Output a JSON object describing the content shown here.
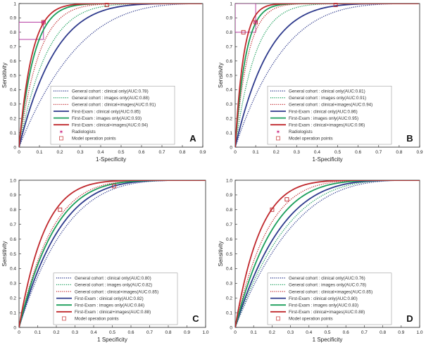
{
  "chart_data": [
    {
      "panel": "A",
      "type": "line",
      "xlabel": "1-Specificity",
      "ylabel": "Sensitivity",
      "xlim": [
        0,
        0.9
      ],
      "ylim": [
        0,
        1.0
      ],
      "xticks": [
        "0",
        "0.1",
        "0.2",
        "0.3",
        "0.4",
        "0.5",
        "0.6",
        "0.7",
        "0.8",
        "0.9"
      ],
      "yticks": [
        "0",
        "0.1",
        "0.2",
        "0.3",
        "0.4",
        "0.5",
        "0.6",
        "0.7",
        "0.8",
        "0.9",
        "1"
      ],
      "legend_position": "bottom-right",
      "series": [
        {
          "name": "General cohort   : clinical only(AUC:0.78)",
          "color": "#2e3a8c",
          "dash": "dot",
          "auc": 0.78
        },
        {
          "name": "General cohort   : images only(AUC:0.88)",
          "color": "#1a9e5a",
          "dash": "dot",
          "auc": 0.88
        },
        {
          "name": "General cohort   : clinical+images(AUC:0.91)",
          "color": "#c0282d",
          "dash": "dot",
          "auc": 0.91
        },
        {
          "name": "First-Exam       : clinical only(AUC:0.85)",
          "color": "#2e3a8c",
          "dash": "solid",
          "auc": 0.85
        },
        {
          "name": "First-Exam       : images only(AUC:0.93)",
          "color": "#1a9e5a",
          "dash": "solid",
          "auc": 0.93
        },
        {
          "name": "First-Exam       : clinical+images(AUC:0.94)",
          "color": "#c0282d",
          "dash": "solid",
          "auc": 0.94
        }
      ],
      "marker_legend": [
        {
          "name": "Radiologists",
          "symbol": "star",
          "color": "#c81e7a"
        },
        {
          "name": "Model operation points",
          "symbol": "square",
          "color": "#d36060"
        }
      ],
      "radiologist_points": [
        [
          0.12,
          0.87
        ]
      ],
      "model_points": [
        [
          0.12,
          0.87
        ],
        [
          0.43,
          0.99
        ]
      ],
      "ref_box": {
        "x0": 0,
        "x1": 0.12,
        "y0": 0.75,
        "y1": 0.87,
        "color": "#b02b9a"
      },
      "panel_label": "A"
    },
    {
      "panel": "B",
      "type": "line",
      "xlabel": "1-Specificity",
      "ylabel": "Sensitivity",
      "xlim": [
        0,
        0.9
      ],
      "ylim": [
        0,
        1.0
      ],
      "xticks": [
        "0",
        "0.1",
        "0.2",
        "0.3",
        "0.4",
        "0.5",
        "0.6",
        "0.7",
        "0.8",
        "0.9"
      ],
      "yticks": [
        "0",
        "0.1",
        "0.2",
        "0.3",
        "0.4",
        "0.5",
        "0.6",
        "0.7",
        "0.8",
        "0.9",
        "1"
      ],
      "legend_position": "bottom-right",
      "series": [
        {
          "name": "General cohort   : clinical only(AUC:0.81)",
          "color": "#2e3a8c",
          "dash": "dot",
          "auc": 0.81
        },
        {
          "name": "General cohort   : images only(AUC:0.91)",
          "color": "#1a9e5a",
          "dash": "dot",
          "auc": 0.91
        },
        {
          "name": "General cohort   : clinical+images(AUC:0.94)",
          "color": "#c0282d",
          "dash": "dot",
          "auc": 0.94
        },
        {
          "name": "First-Exam       : clinical only(AUC:0.86)",
          "color": "#2e3a8c",
          "dash": "solid",
          "auc": 0.86
        },
        {
          "name": "First-Exam       : images only(AUC:0.95)",
          "color": "#1a9e5a",
          "dash": "solid",
          "auc": 0.95
        },
        {
          "name": "First-Exam       : clinical+images(AUC:0.96)",
          "color": "#c0282d",
          "dash": "solid",
          "auc": 0.96
        }
      ],
      "marker_legend": [
        {
          "name": "Radiologists",
          "symbol": "star",
          "color": "#c81e7a"
        },
        {
          "name": "Model operation points",
          "symbol": "square",
          "color": "#d36060"
        }
      ],
      "radiologist_points": [
        [
          0.1,
          0.87
        ]
      ],
      "model_points": [
        [
          0.04,
          0.8
        ],
        [
          0.1,
          0.87
        ],
        [
          0.49,
          0.99
        ]
      ],
      "ref_box": {
        "x0": 0,
        "x1": 0.1,
        "y0": 0.8,
        "y1": 1.0,
        "color": "#b02b9a"
      },
      "panel_label": "B"
    },
    {
      "panel": "C",
      "type": "line",
      "xlabel": "1 Specificity",
      "ylabel": "Sensitivity",
      "xlim": [
        0,
        1.0
      ],
      "ylim": [
        0,
        1.0
      ],
      "xticks": [
        "0",
        "0.1",
        "0.2",
        "0.3",
        "0.4",
        "0.5",
        "0.6",
        "0.7",
        "0.8",
        "0.9",
        "1.0"
      ],
      "yticks": [
        "0",
        "0.1",
        "0.2",
        "0.3",
        "0.4",
        "0.5",
        "0.6",
        "0.7",
        "0.8",
        "0.9",
        "1.0"
      ],
      "legend_position": "bottom-right",
      "series": [
        {
          "name": "General cohort  : clinical only(AUC:0.80)",
          "color": "#2e3a8c",
          "dash": "dot",
          "auc": 0.8
        },
        {
          "name": "General cohort  : images only(AUC:0.82)",
          "color": "#1a9e5a",
          "dash": "dot",
          "auc": 0.82
        },
        {
          "name": "General cohort  : clinical+images(AUC:0.85)",
          "color": "#c0282d",
          "dash": "dot",
          "auc": 0.85
        },
        {
          "name": "First-Exam      : clinical only(AUC:0.82)",
          "color": "#2e3a8c",
          "dash": "solid",
          "auc": 0.82
        },
        {
          "name": "First-Exam      : images only(AUC:0.84)",
          "color": "#1a9e5a",
          "dash": "solid",
          "auc": 0.84
        },
        {
          "name": "First-Exam      : clinical+images(AUC:0.88)",
          "color": "#c0282d",
          "dash": "solid",
          "auc": 0.88
        }
      ],
      "marker_legend": [
        {
          "name": "Model operation points",
          "symbol": "square",
          "color": "#d36060"
        }
      ],
      "radiologist_points": [],
      "model_points": [
        [
          0.22,
          0.8
        ],
        [
          0.51,
          0.96
        ]
      ],
      "panel_label": "C"
    },
    {
      "panel": "D",
      "type": "line",
      "xlabel": "1 Specificity",
      "ylabel": "Sensitivity",
      "xlim": [
        0,
        1.0
      ],
      "ylim": [
        0,
        1.0
      ],
      "xticks": [
        "0",
        "0.1",
        "0.2",
        "0.3",
        "0.4",
        "0.5",
        "0.6",
        "0.7",
        "0.8",
        "0.9",
        "1.0"
      ],
      "yticks": [
        "0",
        "0.1",
        "0.2",
        "0.3",
        "0.4",
        "0.5",
        "0.6",
        "0.7",
        "0.8",
        "0.9",
        "1.0"
      ],
      "legend_position": "bottom-right",
      "series": [
        {
          "name": "General cohort  : clinical only(AUC:0.76)",
          "color": "#2e3a8c",
          "dash": "dot",
          "auc": 0.76
        },
        {
          "name": "General cohort  : images only(AUC:0.78)",
          "color": "#1a9e5a",
          "dash": "dot",
          "auc": 0.78
        },
        {
          "name": "General cohort  : clinical+images(AUC:0.85)",
          "color": "#c0282d",
          "dash": "dot",
          "auc": 0.85
        },
        {
          "name": "First-Exam      : clinical only(AUC:0.80)",
          "color": "#2e3a8c",
          "dash": "solid",
          "auc": 0.8
        },
        {
          "name": "First-Exam      : images only(AUC:0.83)",
          "color": "#1a9e5a",
          "dash": "solid",
          "auc": 0.83
        },
        {
          "name": "First-Exam      : clinical+images(AUC:0.88)",
          "color": "#c0282d",
          "dash": "solid",
          "auc": 0.88
        }
      ],
      "marker_legend": [
        {
          "name": "Model operation points",
          "symbol": "square",
          "color": "#d36060"
        }
      ],
      "radiologist_points": [],
      "model_points": [
        [
          0.2,
          0.8
        ],
        [
          0.28,
          0.87
        ]
      ],
      "panel_label": "D"
    }
  ]
}
